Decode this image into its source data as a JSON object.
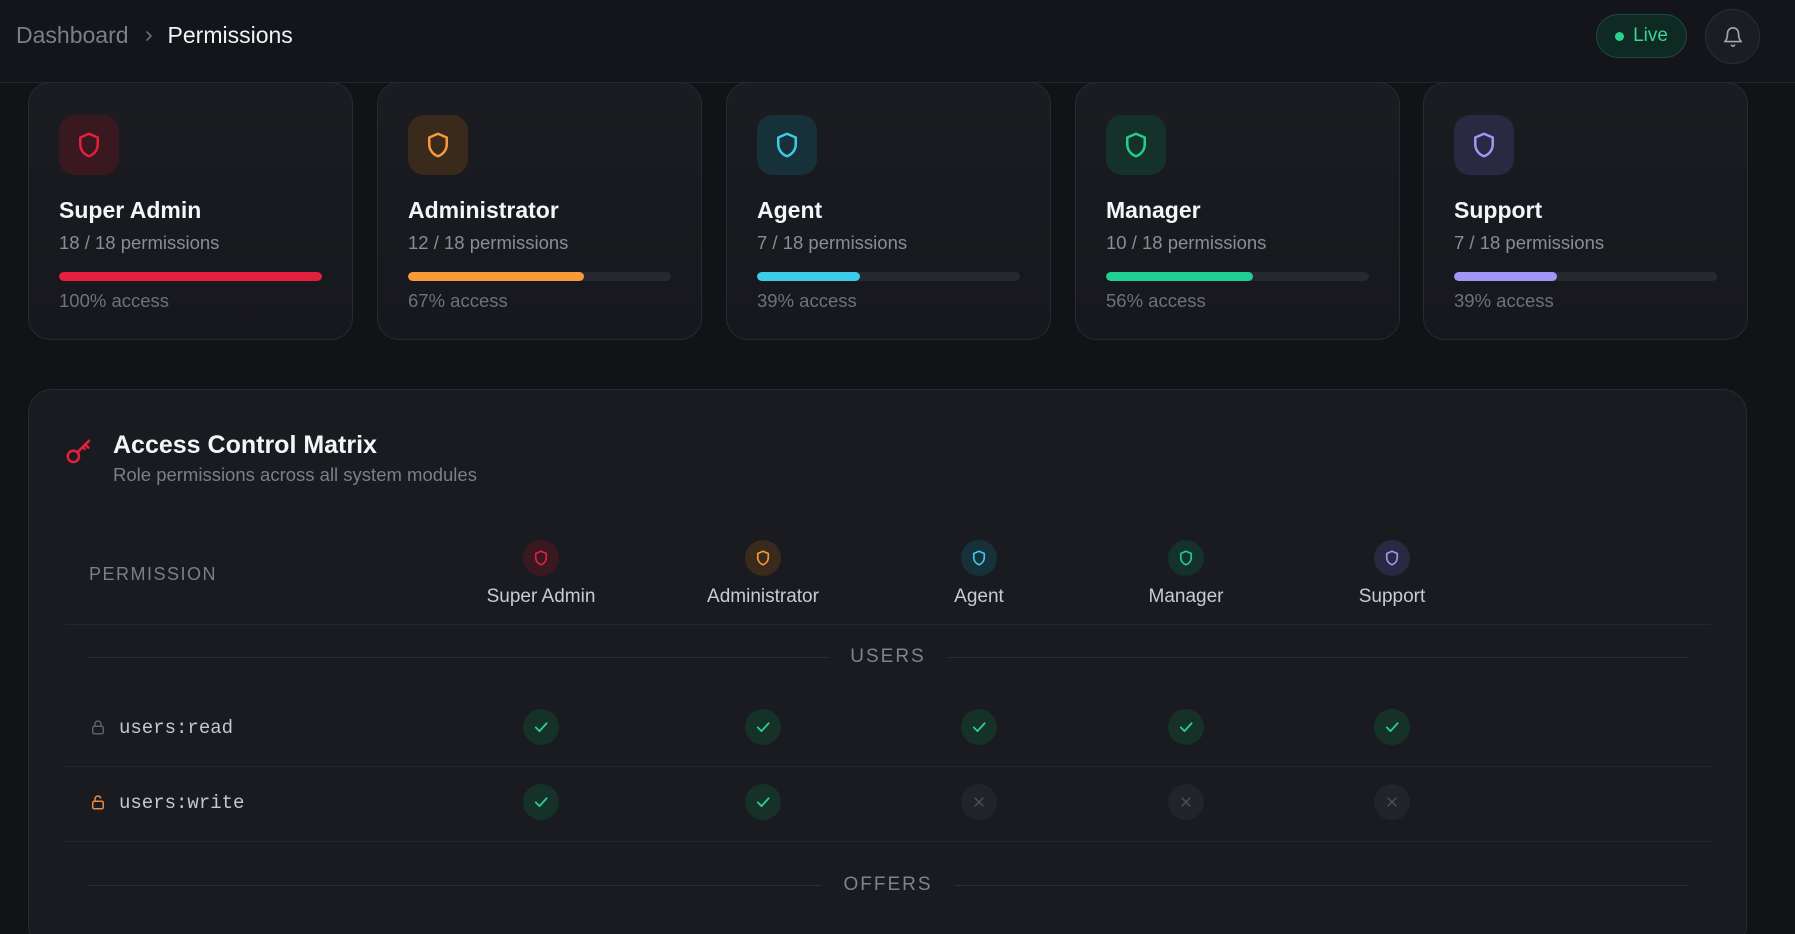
{
  "breadcrumb": {
    "root": "Dashboard",
    "current": "Permissions"
  },
  "header": {
    "live_label": "Live",
    "live_color": "#2bd190"
  },
  "roles": [
    {
      "name": "Super Admin",
      "count": "18 / 18 permissions",
      "access": "100% access",
      "fraction": 1.0,
      "color": "#e5203f",
      "bg": "#3a1820"
    },
    {
      "name": "Administrator",
      "count": "12 / 18 permissions",
      "access": "67% access",
      "fraction": 0.67,
      "color": "#f79a3a",
      "bg": "#3a2a1c"
    },
    {
      "name": "Agent",
      "count": "7 / 18 permissions",
      "access": "39% access",
      "fraction": 0.39,
      "color": "#3ccbe8",
      "bg": "#17313a"
    },
    {
      "name": "Manager",
      "count": "10 / 18 permissions",
      "access": "56% access",
      "fraction": 0.56,
      "color": "#1fcf93",
      "bg": "#143229"
    },
    {
      "name": "Support",
      "count": "7 / 18 permissions",
      "access": "39% access",
      "fraction": 0.39,
      "color": "#a295f5",
      "bg": "#2a2942"
    }
  ],
  "matrix": {
    "title": "Access Control Matrix",
    "subtitle": "Role permissions across all system modules",
    "permission_header": "PERMISSION",
    "sections": [
      {
        "label": "USERS",
        "rows": [
          {
            "name": "users:read",
            "lock": "locked",
            "values": [
              true,
              true,
              true,
              true,
              true
            ]
          },
          {
            "name": "users:write",
            "lock": "unlocked",
            "values": [
              true,
              true,
              false,
              false,
              false
            ]
          }
        ]
      },
      {
        "label": "OFFERS",
        "rows": []
      }
    ]
  },
  "icons": {
    "role": "shield-icon",
    "bell": "bell-icon",
    "key": "key-icon",
    "check": "check-icon",
    "cross": "x-icon",
    "lock": "lock-icon",
    "unlock": "unlock-icon",
    "chevron": "chevron-right-icon"
  }
}
